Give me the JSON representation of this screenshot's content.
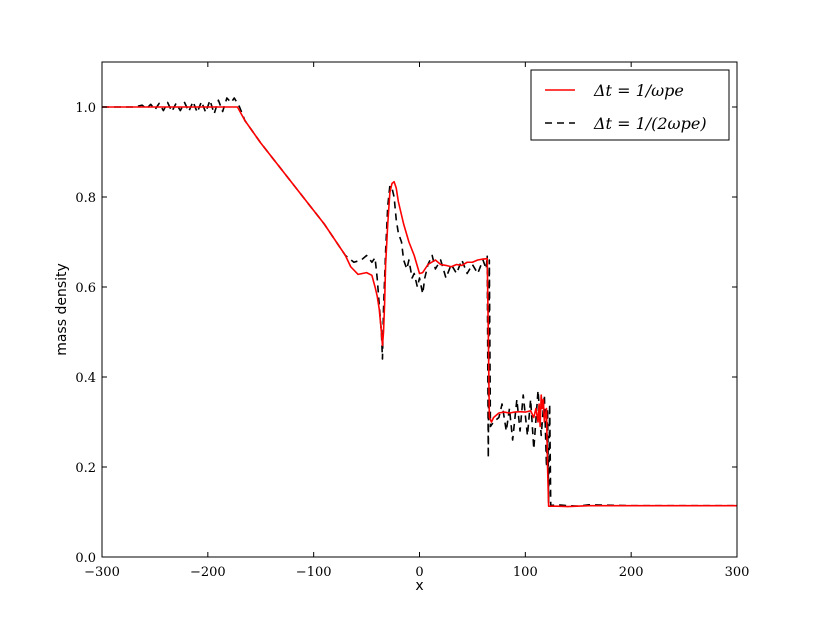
{
  "chart_data": {
    "type": "line",
    "title": "",
    "xlabel": "x",
    "ylabel": "mass density",
    "xlim": [
      -300,
      300
    ],
    "ylim": [
      0.0,
      1.1
    ],
    "xticks": [
      -300,
      -200,
      -100,
      0,
      100,
      200,
      300
    ],
    "yticks": [
      0.0,
      0.2,
      0.4,
      0.6,
      0.8,
      1.0
    ],
    "xtick_labels": [
      "−300",
      "−200",
      "−100",
      "0",
      "100",
      "200",
      "300"
    ],
    "ytick_labels": [
      "0.0",
      "0.2",
      "0.4",
      "0.6",
      "0.8",
      "1.0"
    ],
    "grid": false,
    "legend_position": "top-right",
    "series": [
      {
        "name": "Δt = 1/ωpe",
        "color": "#ff0000",
        "style": "solid",
        "x": [
          -300,
          -180,
          -172,
          -165,
          -150,
          -120,
          -90,
          -70,
          -65,
          -58,
          -50,
          -45,
          -42,
          -40,
          -38,
          -36,
          -35,
          -34,
          -33,
          -32,
          -30,
          -28,
          -26,
          -24,
          -22,
          -20,
          -15,
          -10,
          -5,
          0,
          3,
          8,
          15,
          20,
          25,
          30,
          35,
          40,
          45,
          50,
          55,
          60,
          64,
          65,
          66,
          68,
          70,
          75,
          80,
          85,
          90,
          95,
          100,
          105,
          108,
          110,
          112,
          113,
          114,
          115,
          116,
          117,
          118,
          120,
          121,
          122,
          124,
          130,
          140,
          160,
          200,
          250,
          300
        ],
        "y": [
          1.0,
          1.0,
          1.0,
          0.97,
          0.92,
          0.83,
          0.74,
          0.67,
          0.645,
          0.628,
          0.632,
          0.626,
          0.6,
          0.58,
          0.55,
          0.5,
          0.47,
          0.5,
          0.56,
          0.65,
          0.74,
          0.81,
          0.83,
          0.834,
          0.82,
          0.79,
          0.74,
          0.7,
          0.67,
          0.63,
          0.632,
          0.65,
          0.66,
          0.65,
          0.648,
          0.645,
          0.65,
          0.648,
          0.655,
          0.655,
          0.66,
          0.662,
          0.663,
          0.5,
          0.31,
          0.3,
          0.31,
          0.32,
          0.322,
          0.32,
          0.322,
          0.323,
          0.322,
          0.325,
          0.31,
          0.33,
          0.3,
          0.34,
          0.29,
          0.36,
          0.33,
          0.35,
          0.3,
          0.33,
          0.2,
          0.113,
          0.113,
          0.113,
          0.112,
          0.114,
          0.114,
          0.114,
          0.114
        ]
      },
      {
        "name": "Δt = 1/(2ωpe)",
        "color": "#000000",
        "style": "dashed",
        "x": [
          -300,
          -270,
          -262,
          -258,
          -254,
          -250,
          -246,
          -242,
          -238,
          -234,
          -230,
          -226,
          -222,
          -218,
          -214,
          -210,
          -206,
          -202,
          -198,
          -194,
          -190,
          -186,
          -182,
          -178,
          -175,
          -170,
          -165,
          -150,
          -120,
          -90,
          -70,
          -62,
          -55,
          -50,
          -45,
          -42,
          -40,
          -38,
          -36,
          -35,
          -34,
          -32,
          -30,
          -28,
          -26,
          -24,
          -22,
          -20,
          -17,
          -15,
          -12,
          -10,
          -7,
          -5,
          -2,
          0,
          3,
          5,
          8,
          12,
          15,
          20,
          25,
          30,
          35,
          40,
          45,
          50,
          55,
          60,
          63,
          64,
          65,
          66,
          67,
          70,
          75,
          78,
          82,
          85,
          88,
          92,
          95,
          98,
          102,
          105,
          108,
          112,
          115,
          118,
          120,
          121,
          122,
          123,
          124,
          126,
          130,
          140,
          150,
          160,
          200,
          250,
          300
        ],
        "y": [
          1.0,
          1.0,
          1.004,
          0.996,
          1.006,
          0.994,
          1.008,
          0.992,
          1.01,
          0.99,
          1.008,
          0.992,
          1.01,
          0.99,
          1.012,
          0.988,
          1.012,
          0.988,
          1.015,
          0.985,
          1.015,
          0.99,
          1.02,
          1.01,
          1.02,
          1.0,
          0.97,
          0.92,
          0.83,
          0.74,
          0.67,
          0.655,
          0.66,
          0.67,
          0.655,
          0.665,
          0.62,
          0.56,
          0.5,
          0.44,
          0.55,
          0.68,
          0.78,
          0.825,
          0.82,
          0.8,
          0.75,
          0.72,
          0.7,
          0.66,
          0.64,
          0.66,
          0.62,
          0.63,
          0.6,
          0.62,
          0.585,
          0.62,
          0.65,
          0.67,
          0.64,
          0.66,
          0.62,
          0.65,
          0.63,
          0.66,
          0.63,
          0.65,
          0.63,
          0.66,
          0.64,
          0.67,
          0.22,
          0.66,
          0.29,
          0.3,
          0.31,
          0.34,
          0.28,
          0.33,
          0.26,
          0.35,
          0.28,
          0.36,
          0.27,
          0.35,
          0.24,
          0.37,
          0.27,
          0.36,
          0.2,
          0.33,
          0.12,
          0.34,
          0.115,
          0.115,
          0.116,
          0.114,
          0.113,
          0.116,
          0.114,
          0.114,
          0.114
        ]
      }
    ]
  },
  "legend": {
    "labels": [
      "Δt = 1/ωpe",
      "Δt = 1/(2ωpe)"
    ]
  }
}
